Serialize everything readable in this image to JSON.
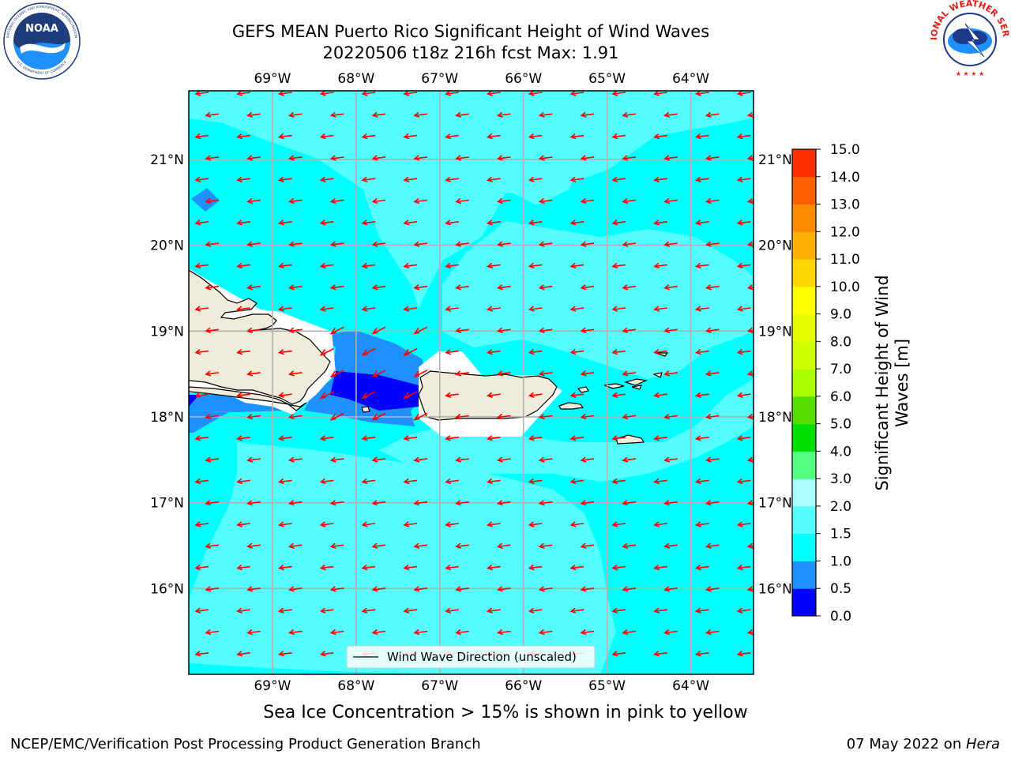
{
  "title": {
    "line1": "GEFS MEAN Puerto Rico Significant Height of Wind Waves",
    "line2": "20220506 t18z 216h fcst   Max: 1.91"
  },
  "logos": {
    "left": "NOAA",
    "left_ring": "NATIONAL OCEANIC AND ATMOSPHERIC ADMINISTRATION • U.S. DEPARTMENT OF COMMERCE",
    "right_ring": "NATIONAL WEATHER SERVICE"
  },
  "map": {
    "lon_labels": [
      "69°W",
      "68°W",
      "67°W",
      "66°W",
      "65°W",
      "64°W"
    ],
    "lat_labels": [
      "21°N",
      "20°N",
      "19°N",
      "18°N",
      "17°N",
      "16°N"
    ],
    "lon_range": [
      -70.0,
      -63.25
    ],
    "lat_range": [
      15.0,
      21.8
    ],
    "ocean_color": "#00ffff",
    "light_color": "#55ffff",
    "land_color": "#efecdb",
    "arrow_color": "#ff0000",
    "legend_label": "Wind Wave Direction (unscaled)",
    "wind_direction": "from east (arrows point west)"
  },
  "colorbar": {
    "label": "Significant Height of Wind Waves [m]",
    "label_line1": "Significant Height of Wind",
    "label_line2": "Waves [m]",
    "ticks": [
      "0.0",
      "0.5",
      "1.0",
      "1.5",
      "2.0",
      "3.0",
      "4.0",
      "5.0",
      "6.0",
      "7.0",
      "8.0",
      "9.0",
      "10.0",
      "11.0",
      "12.0",
      "13.0",
      "14.0",
      "15.0"
    ],
    "colors": [
      "#0000ff",
      "#1e90ff",
      "#00ffff",
      "#55ffff",
      "#aaffff",
      "#55ff80",
      "#00e000",
      "#55dd00",
      "#aaff00",
      "#ccff00",
      "#e6ff00",
      "#ffff00",
      "#ffd700",
      "#ffb000",
      "#ff8c00",
      "#ff6000",
      "#ff3000",
      "#ff0000"
    ]
  },
  "footer": {
    "seaice_note": "Sea Ice Concentration > 15% is shown in pink to yellow",
    "credit_left": "NCEP/EMC/Verification Post Processing Product Generation Branch",
    "credit_date": "07 May 2022 on ",
    "credit_host": "Hera"
  }
}
